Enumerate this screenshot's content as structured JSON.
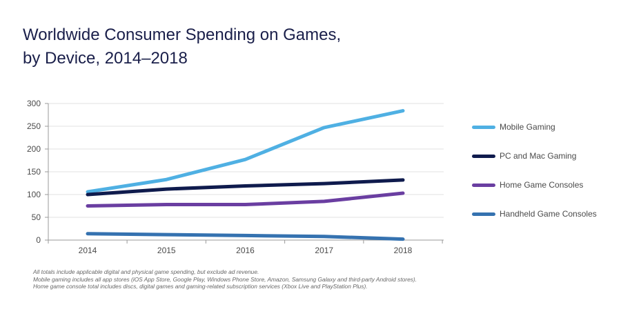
{
  "chart_data": {
    "type": "line",
    "title_lines": [
      "Worldwide Consumer Spending on Games,",
      "by Device, 2014–2018"
    ],
    "categories": [
      "2014",
      "2015",
      "2016",
      "2017",
      "2018"
    ],
    "yticks": [
      "0",
      "50",
      "100",
      "150",
      "200",
      "250",
      "300"
    ],
    "ylim": [
      0,
      300
    ],
    "grid": true,
    "legend_position": "right",
    "series": [
      {
        "name": "Mobile Gaming",
        "color": "#4fb0e3",
        "values": [
          106,
          133,
          177,
          247,
          284
        ]
      },
      {
        "name": "PC and Mac Gaming",
        "color": "#0f1b4d",
        "values": [
          100,
          112,
          119,
          124,
          132
        ]
      },
      {
        "name": "Home Game Consoles",
        "color": "#6a3ea1",
        "values": [
          75,
          78,
          78,
          85,
          103
        ]
      },
      {
        "name": "Handheld Game Consoles",
        "color": "#3572b0",
        "values": [
          14,
          12,
          10,
          8,
          2
        ]
      }
    ],
    "notes": [
      "All totals include applicable digital and physical game spending, but exclude ad revenue.",
      "Mobile gaming includes all app stores (iOS App Store, Google Play, Windows Phone Store, Amazon, Samsung Galaxy and third-party Android stores).",
      "Home game console total includes discs, digital games and gaming-related subscription services (Xbox Live and PlayStation Plus)."
    ],
    "axis_color": "#999999",
    "grid_color": "#e2e2e2"
  }
}
